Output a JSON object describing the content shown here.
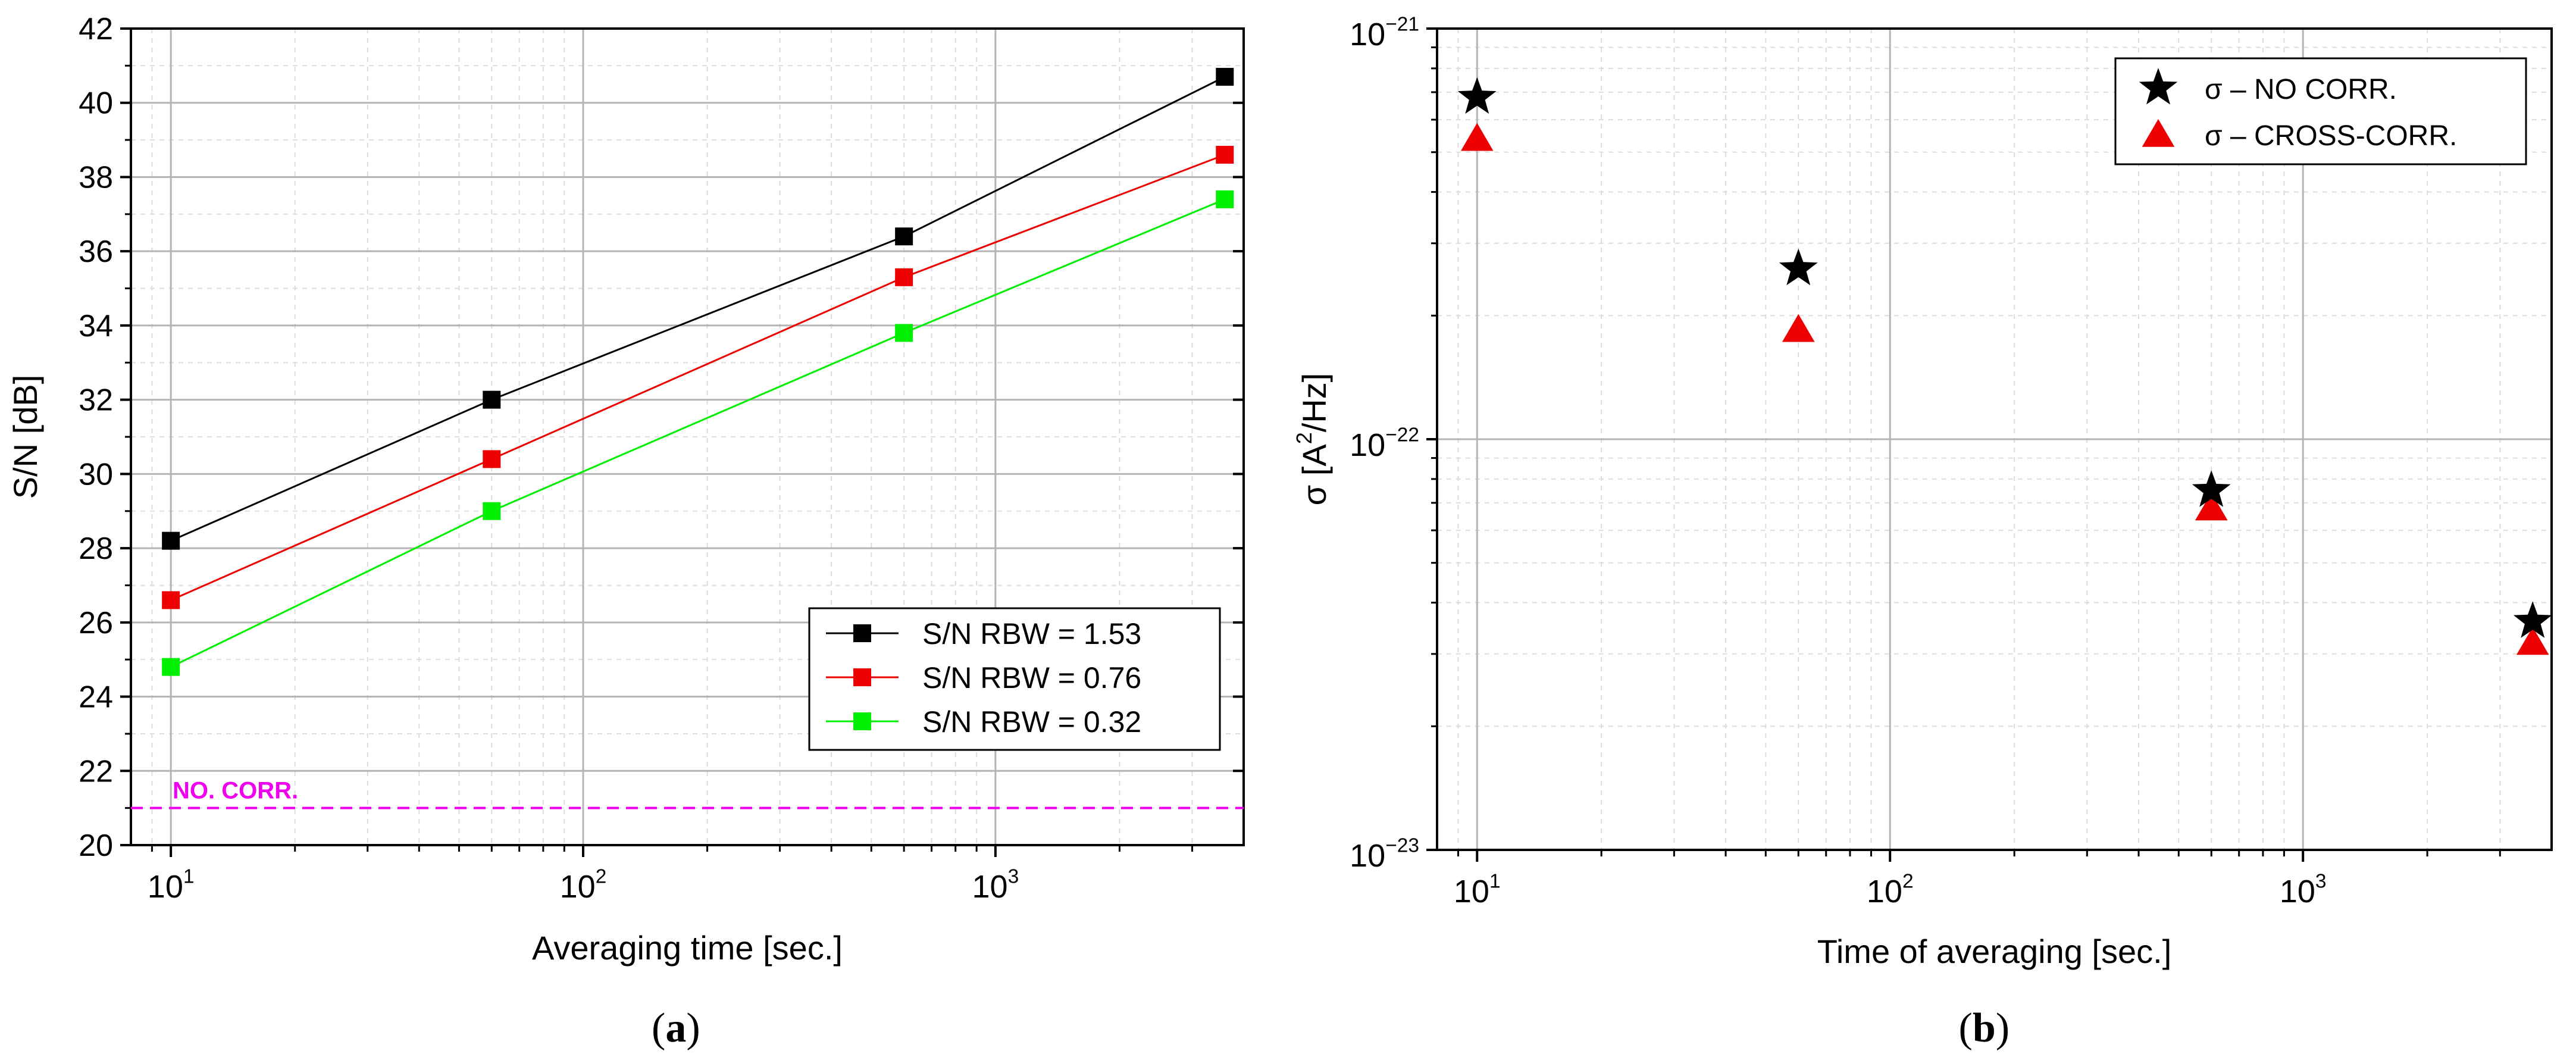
{
  "chart_data": [
    {
      "type": "line",
      "caption": "(a)",
      "caption_letter": "a",
      "xlabel": "Averaging time [sec.]",
      "ylabel": "S/N [dB]",
      "xscale": "log",
      "xlim": [
        8,
        4000
      ],
      "ylim": [
        20,
        42
      ],
      "x_ticks": [
        10,
        100,
        1000
      ],
      "x_tick_labels": [
        {
          "base": "10",
          "exp": "1"
        },
        {
          "base": "10",
          "exp": "2"
        },
        {
          "base": "10",
          "exp": "3"
        }
      ],
      "y_ticks": [
        20,
        22,
        24,
        26,
        28,
        30,
        32,
        34,
        36,
        38,
        40,
        42
      ],
      "y_tick_labels": [
        "20",
        "22",
        "24",
        "26",
        "28",
        "30",
        "32",
        "34",
        "36",
        "38",
        "40",
        "42"
      ],
      "grid": true,
      "legend_position": "bottom-right",
      "x": [
        10,
        60,
        600,
        3600
      ],
      "series": [
        {
          "name": "S/N RBW = 1.53",
          "color": "#000000",
          "values": [
            28.2,
            32.0,
            36.4,
            40.7
          ]
        },
        {
          "name": "S/N RBW = 0.76",
          "color": "#ee0000",
          "values": [
            26.6,
            30.4,
            35.3,
            38.6
          ]
        },
        {
          "name": "S/N RBW = 0.32",
          "color": "#00ee00",
          "values": [
            24.8,
            29.0,
            33.8,
            37.4
          ]
        }
      ],
      "reference_line": {
        "label": "NO. CORR.",
        "value": 21.0,
        "color": "#ee00ee"
      }
    },
    {
      "type": "scatter",
      "caption": "(b)",
      "caption_letter": "b",
      "xlabel": "Time of averaging [sec.]",
      "ylabel": {
        "prefix": "σ [A",
        "sup": "2",
        "suffix": "/Hz]"
      },
      "xscale": "log",
      "yscale": "log",
      "xlim": [
        8,
        4000
      ],
      "ylim": [
        1e-23,
        1e-21
      ],
      "x_ticks": [
        10,
        100,
        1000
      ],
      "x_tick_labels": [
        {
          "base": "10",
          "exp": "1"
        },
        {
          "base": "10",
          "exp": "2"
        },
        {
          "base": "10",
          "exp": "3"
        }
      ],
      "y_ticks": [
        1e-23,
        1e-22,
        1e-21
      ],
      "y_tick_labels": [
        {
          "base": "10",
          "exp": "−23"
        },
        {
          "base": "10",
          "exp": "−22"
        },
        {
          "base": "10",
          "exp": "−21"
        }
      ],
      "grid": true,
      "legend_position": "top-right",
      "x": [
        10,
        60,
        600,
        3600
      ],
      "series": [
        {
          "name": "σ – NO CORR.",
          "marker": "star",
          "color": "#000000",
          "values": [
            6.8e-22,
            2.6e-22,
            7.5e-23,
            3.6e-23
          ]
        },
        {
          "name": "σ – CROSS-CORR.",
          "marker": "triangle",
          "color": "#ee0000",
          "values": [
            5.4e-22,
            1.85e-22,
            6.8e-23,
            3.2e-23
          ]
        }
      ]
    }
  ]
}
